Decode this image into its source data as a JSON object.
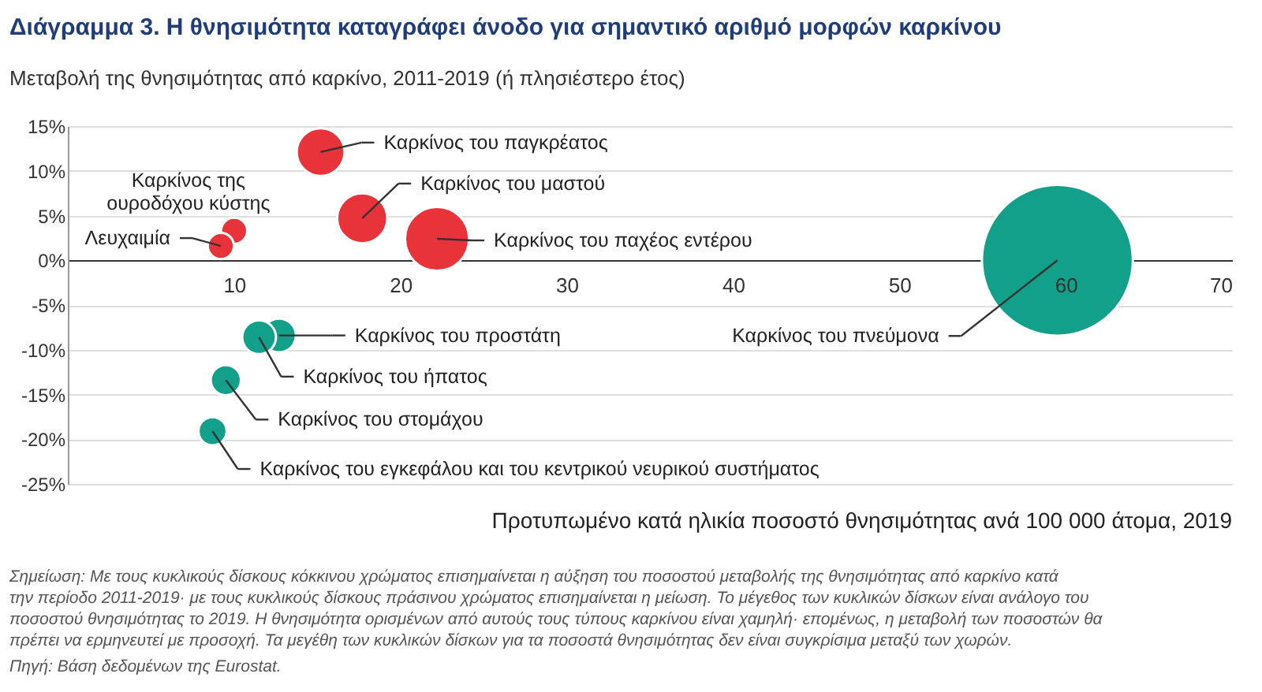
{
  "chart_data": {
    "type": "bubble",
    "title": "Διάγραμμα 3. Η θνησιμότητα καταγράφει άνοδο για σημαντικό αριθμό μορφών καρκίνου",
    "ylabel": "Μεταβολή της θνησιμότητας από καρκίνο, 2011-2019 (ή πλησιέστερο έτος)",
    "xlabel": "Προτυπωμένο κατά ηλικία ποσοστό θνησιμότητας ανά 100 000 άτομα, 2019",
    "series": [
      {
        "color": "#e8333a",
        "x": [
          15.2,
          17.7,
          22.2,
          10.0,
          9.2
        ],
        "values": [
          12.1,
          4.7,
          2.4,
          3.3,
          1.6
        ],
        "sizes": [
          0.1,
          0.11,
          0.18,
          0.03,
          0.03
        ]
      },
      {
        "color": "#13a08a",
        "x": [
          12.7,
          11.5,
          9.5,
          8.7,
          59.5
        ],
        "values": [
          -8.4,
          -8.6,
          -13.4,
          -19.1,
          0
        ],
        "sizes": [
          0.05,
          0.05,
          0.04,
          0.035,
          1
        ]
      }
    ],
    "xlim": [
      0,
      70
    ],
    "xticks": [
      10,
      20,
      30,
      40,
      50,
      60,
      70
    ],
    "ylim": [
      -25,
      15
    ],
    "yticks": [
      {
        "value": 15,
        "label": "15%"
      },
      {
        "value": 10,
        "label": "10%"
      },
      {
        "value": 5,
        "label": "5%"
      },
      {
        "value": 0,
        "label": "0%"
      },
      {
        "value": -5,
        "label": "-5%"
      },
      {
        "value": -10,
        "label": "-10%"
      },
      {
        "value": -15,
        "label": "-15%"
      },
      {
        "value": -20,
        "label": "-20%"
      },
      {
        "value": -25,
        "label": "-25%"
      }
    ],
    "grid": "y",
    "legend": false,
    "annotations": [
      {
        "text": "Καρκίνος του παγκρέατος",
        "x": 15.2,
        "y": 12.1
      },
      {
        "text": "Καρκίνος του μαστού",
        "x": 17.7,
        "y": 4.7
      },
      {
        "text": "Καρκίνος του παχέος εντέρου",
        "x": 22.2,
        "y": 2.4
      },
      {
        "text": "Καρκίνος της\nουροδόχου κύστης",
        "x": 10.0,
        "y": 3.3
      },
      {
        "text": "Λευχαιμία",
        "x": 9.2,
        "y": 1.6
      },
      {
        "text": "Καρκίνος του προστάτη",
        "x": 12.7,
        "y": -8.4
      },
      {
        "text": "Καρκίνος του ήπατος",
        "x": 11.5,
        "y": -8.6
      },
      {
        "text": "Καρκίνος του στομάχου",
        "x": 9.5,
        "y": -13.4
      },
      {
        "text": "Καρκίνος του εγκεφάλου και του κεντρικού νευρικού συστήματος",
        "x": 8.7,
        "y": -19.1
      },
      {
        "text": "Καρκίνος του πνεύμονα",
        "x": 59.5,
        "y": 0
      },
      "Σημείωση: Με τους κυκλικούς δίσκους κόκκινου χρώματος επισημαίνεται η αύξηση του ποσοστού μεταβολής της θνησιμότητας από καρκίνο κατά",
      "την περίοδο 2011-2019· με τους κυκλικούς δίσκους πράσινου χρώματος επισημαίνεται η μείωση. Το μέγεθος των κυκλικών δίσκων είναι ανάλογο του",
      "ποσοστού θνησιμότητας το 2019. Η θνησιμότητα ορισμένων από αυτούς τους τύπους καρκίνου είναι χαμηλή· επομένως, η μεταβολή των ποσοστών θα",
      "πρέπει να ερμηνευτεί με προσοχή. Τα μεγέθη των κυκλικών δίσκων για τα ποσοστά θνησιμότητας δεν είναι συγκρίσιμα μεταξύ των χωρών.",
      "Πηγή: Βάση δεδομένων της Eurostat."
    ]
  }
}
